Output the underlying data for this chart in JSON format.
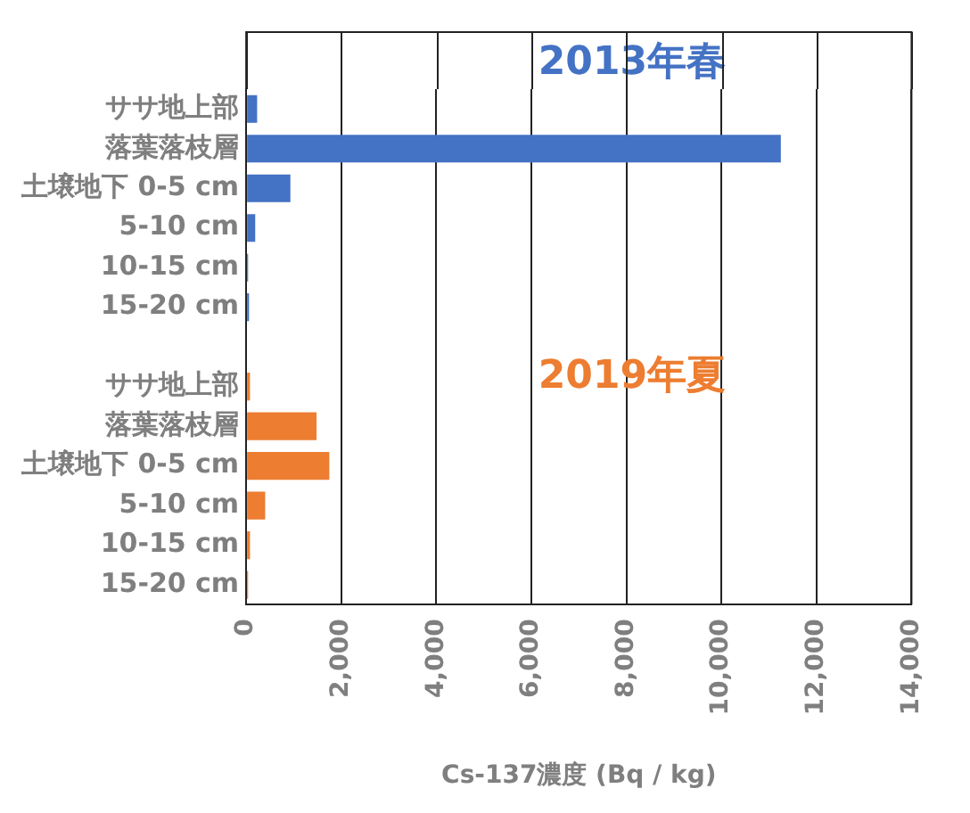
{
  "chart_data": {
    "type": "bar",
    "orientation": "horizontal",
    "xlabel": "Cs-137濃度 (Bq / kg)",
    "categories": [
      "ササ地上部",
      "落葉落枝層",
      "土壌地下 0-5 cm",
      "5-10 cm",
      "10-15 cm",
      "15-20 cm",
      null,
      "ササ地上部",
      "落葉落枝層",
      "土壌地下 0-5 cm",
      "5-10 cm",
      "10-15 cm",
      "15-20 cm"
    ],
    "series": [
      {
        "name": "2013年春",
        "color": "#4472c4",
        "values": [
          230,
          11250,
          930,
          190,
          40,
          60,
          null,
          null,
          null,
          null,
          null,
          null,
          null
        ]
      },
      {
        "name": "2019年夏",
        "color": "#ed7d31",
        "values": [
          null,
          null,
          null,
          null,
          null,
          null,
          null,
          80,
          1480,
          1750,
          400,
          80,
          40
        ]
      }
    ],
    "xlim": [
      0,
      14000
    ],
    "xticks": [
      {
        "value": 0,
        "label": "0"
      },
      {
        "value": 2000,
        "label": "2,000"
      },
      {
        "value": 4000,
        "label": "4,000"
      },
      {
        "value": 6000,
        "label": "6,000"
      },
      {
        "value": 8000,
        "label": "8,000"
      },
      {
        "value": 10000,
        "label": "10,000"
      },
      {
        "value": 12000,
        "label": "12,000"
      },
      {
        "value": 14000,
        "label": "14,000"
      }
    ],
    "grid": "x",
    "legend": false
  }
}
